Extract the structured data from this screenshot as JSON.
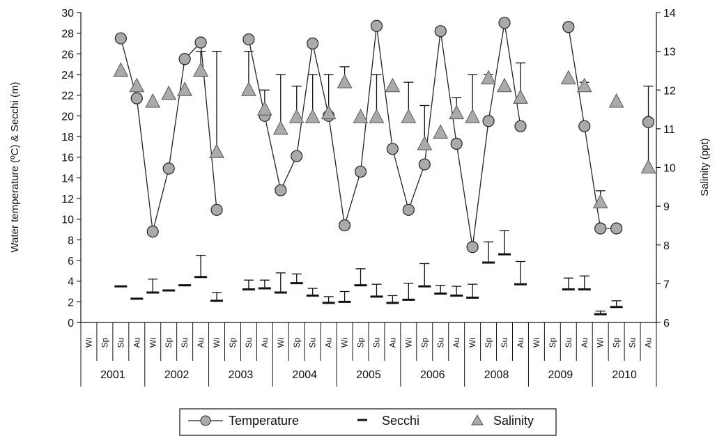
{
  "chart_data": {
    "type": "line",
    "title": "",
    "ylabel_left": "Water temperature (ºC) & Secchi (m)",
    "ylabel_right": "Salinity (ppt)",
    "ylim_left": [
      0,
      30
    ],
    "ylim_right": [
      6,
      14
    ],
    "yticks_left": [
      "0",
      "2",
      "4",
      "6",
      "8",
      "10",
      "12",
      "14",
      "16",
      "18",
      "20",
      "22",
      "24",
      "26",
      "28",
      "30"
    ],
    "yticks_right": [
      "6",
      "7",
      "8",
      "9",
      "10",
      "11",
      "12",
      "13",
      "14"
    ],
    "grid": false,
    "legend_position": "bottom",
    "season_labels": [
      "Wi",
      "Sp",
      "Su",
      "Au"
    ],
    "years": [
      "2001",
      "2002",
      "2003",
      "2004",
      "2005",
      "2006",
      "2008",
      "2009",
      "2010"
    ],
    "series": [
      {
        "name": "Temperature",
        "axis": "left",
        "marker": "circle",
        "segments": [
          [
            [
              2,
              27.5
            ],
            [
              3,
              21.7
            ],
            [
              4,
              8.8
            ],
            [
              5,
              14.9
            ],
            [
              6,
              25.5
            ],
            [
              7,
              27.1
            ],
            [
              8,
              10.9
            ]
          ],
          [
            [
              10,
              27.4
            ],
            [
              11,
              20.0
            ],
            [
              12,
              12.8
            ],
            [
              13,
              16.1
            ],
            [
              14,
              27.0
            ],
            [
              15,
              20.0
            ],
            [
              16,
              9.4
            ],
            [
              17,
              14.6
            ],
            [
              18,
              28.7
            ],
            [
              19,
              16.8
            ],
            [
              20,
              10.9
            ],
            [
              21,
              15.3
            ],
            [
              22,
              28.2
            ],
            [
              23,
              17.3
            ],
            [
              24,
              7.3
            ],
            [
              25,
              19.5
            ],
            [
              26,
              29.0
            ],
            [
              27,
              19.0
            ]
          ],
          [
            [
              30,
              28.6
            ],
            [
              31,
              19.0
            ],
            [
              32,
              9.1
            ],
            [
              33,
              9.1
            ]
          ],
          [
            [
              35,
              19.4
            ]
          ]
        ]
      },
      {
        "name": "Secchi",
        "axis": "left",
        "marker": "dash",
        "points": [
          [
            2,
            3.5,
            null
          ],
          [
            3,
            2.3,
            null
          ],
          [
            4,
            2.9,
            4.2
          ],
          [
            5,
            3.1,
            null
          ],
          [
            6,
            3.6,
            null
          ],
          [
            7,
            4.4,
            6.5
          ],
          [
            8,
            2.1,
            2.9
          ],
          [
            10,
            3.2,
            4.1
          ],
          [
            11,
            3.3,
            4.1
          ],
          [
            12,
            2.9,
            4.8
          ],
          [
            13,
            3.8,
            4.7
          ],
          [
            14,
            2.6,
            3.3
          ],
          [
            15,
            1.9,
            2.5
          ],
          [
            16,
            2.0,
            3.0
          ],
          [
            17,
            3.6,
            5.2
          ],
          [
            18,
            2.5,
            3.7
          ],
          [
            19,
            1.9,
            2.6
          ],
          [
            20,
            2.2,
            3.8
          ],
          [
            21,
            3.5,
            5.7
          ],
          [
            22,
            2.8,
            3.6
          ],
          [
            23,
            2.6,
            3.5
          ],
          [
            24,
            2.4,
            3.7
          ],
          [
            25,
            5.8,
            7.8
          ],
          [
            26,
            6.6,
            8.9
          ],
          [
            27,
            3.7,
            5.9
          ],
          [
            30,
            3.2,
            4.3
          ],
          [
            31,
            3.2,
            4.5
          ],
          [
            32,
            0.8,
            1.1
          ],
          [
            33,
            1.5,
            2.1
          ]
        ]
      },
      {
        "name": "Salinity",
        "axis": "right",
        "marker": "triangle",
        "points": [
          [
            2,
            12.5,
            null
          ],
          [
            3,
            12.1,
            null
          ],
          [
            4,
            11.7,
            null
          ],
          [
            5,
            11.9,
            null
          ],
          [
            6,
            12.0,
            null
          ],
          [
            7,
            12.5,
            13.0
          ],
          [
            8,
            10.4,
            13.0
          ],
          [
            10,
            12.0,
            13.0
          ],
          [
            11,
            11.5,
            12.0
          ],
          [
            12,
            11.0,
            12.4
          ],
          [
            13,
            11.3,
            12.1
          ],
          [
            14,
            11.3,
            12.4
          ],
          [
            15,
            11.4,
            12.4
          ],
          [
            16,
            12.2,
            12.6
          ],
          [
            17,
            11.3,
            null
          ],
          [
            18,
            11.3,
            12.4
          ],
          [
            19,
            12.1,
            null
          ],
          [
            20,
            11.3,
            12.2
          ],
          [
            21,
            10.6,
            11.6
          ],
          [
            22,
            10.9,
            null
          ],
          [
            23,
            11.4,
            11.8
          ],
          [
            24,
            11.3,
            12.4
          ],
          [
            25,
            12.3,
            12.4
          ],
          [
            26,
            12.1,
            null
          ],
          [
            27,
            11.8,
            12.7
          ],
          [
            30,
            12.3,
            null
          ],
          [
            31,
            12.1,
            12.2
          ],
          [
            32,
            9.1,
            9.4
          ],
          [
            33,
            11.7,
            null
          ],
          [
            35,
            10.0,
            12.1
          ]
        ]
      }
    ]
  },
  "legend": {
    "temperature": "Temperature",
    "secchi": "Secchi",
    "salinity": "Salinity"
  }
}
